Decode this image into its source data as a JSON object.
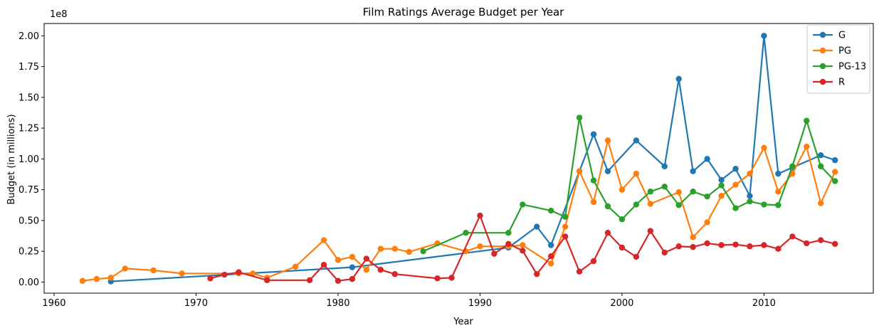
{
  "chart_data": {
    "type": "line",
    "title": "Film Ratings Average Budget per Year",
    "xlabel": "Year",
    "ylabel": "Budget (in millions)",
    "y_offset_text": "1e8",
    "xlim": [
      1959.3,
      2017.7
    ],
    "ylim": [
      -9000000,
      210000000
    ],
    "x_ticks": [
      1960,
      1970,
      1980,
      1990,
      2000,
      2010
    ],
    "y_ticks": [
      0,
      25000000,
      50000000,
      75000000,
      100000000,
      125000000,
      150000000,
      175000000,
      200000000
    ],
    "y_tick_labels": [
      "0.00",
      "0.25",
      "0.50",
      "0.75",
      "1.00",
      "1.25",
      "1.50",
      "1.75",
      "2.00"
    ],
    "grid": false,
    "legend_position": "top-right",
    "series": [
      {
        "name": "G",
        "color": "#1f77b4",
        "x": [
          1964,
          1981,
          1992,
          1994,
          1995,
          1997,
          1998,
          1999,
          2001,
          2003,
          2004,
          2005,
          2006,
          2007,
          2008,
          2009,
          2010,
          2011,
          2012,
          2014,
          2015
        ],
        "y": [
          500000,
          12000000,
          28000000,
          45000000,
          30000000,
          90000000,
          120000000,
          90000000,
          115000000,
          94000000,
          165000000,
          90000000,
          100000000,
          83000000,
          92000000,
          70000000,
          200000000,
          88000000,
          93000000,
          103000000,
          99000000
        ]
      },
      {
        "name": "PG",
        "color": "#ff7f0e",
        "x": [
          1962,
          1963,
          1964,
          1965,
          1967,
          1969,
          1973,
          1974,
          1975,
          1977,
          1979,
          1980,
          1981,
          1982,
          1983,
          1984,
          1985,
          1987,
          1989,
          1990,
          1992,
          1993,
          1995,
          1996,
          1997,
          1998,
          1999,
          2000,
          2001,
          2002,
          2004,
          2005,
          2006,
          2007,
          2008,
          2009,
          2010,
          2011,
          2012,
          2013,
          2014,
          2015
        ],
        "y": [
          1000000,
          2500000,
          3500000,
          11000000,
          9500000,
          7000000,
          7000000,
          7000000,
          3500000,
          12500000,
          34000000,
          18000000,
          20500000,
          10000000,
          27000000,
          27000000,
          24500000,
          31500000,
          25000000,
          29000000,
          29000000,
          30000000,
          15000000,
          45000000,
          90000000,
          65000000,
          115000000,
          75000000,
          88000000,
          63500000,
          73000000,
          36500000,
          48500000,
          70000000,
          79000000,
          88000000,
          109000000,
          73500000,
          88000000,
          110000000,
          64000000,
          89500000
        ]
      },
      {
        "name": "PG-13",
        "color": "#2ca02c",
        "x": [
          1986,
          1989,
          1992,
          1993,
          1995,
          1996,
          1997,
          1998,
          1999,
          2000,
          2001,
          2002,
          2003,
          2004,
          2005,
          2006,
          2007,
          2008,
          2009,
          2010,
          2011,
          2012,
          2013,
          2014,
          2015
        ],
        "y": [
          25000000,
          40000000,
          40000000,
          63000000,
          58000000,
          53000000,
          133500000,
          82500000,
          61500000,
          51000000,
          63000000,
          73500000,
          77500000,
          62500000,
          73500000,
          69500000,
          78500000,
          60000000,
          65500000,
          63000000,
          62500000,
          94000000,
          131000000,
          94000000,
          82000000
        ]
      },
      {
        "name": "R",
        "color": "#d62728",
        "x": [
          1971,
          1972,
          1973,
          1975,
          1978,
          1979,
          1980,
          1981,
          1982,
          1983,
          1984,
          1987,
          1988,
          1990,
          1991,
          1992,
          1993,
          1994,
          1995,
          1996,
          1997,
          1998,
          1999,
          2000,
          2001,
          2002,
          2003,
          2004,
          2005,
          2006,
          2007,
          2008,
          2009,
          2010,
          2011,
          2012,
          2013,
          2014,
          2015
        ],
        "y": [
          3000000,
          6000000,
          8000000,
          1500000,
          1500000,
          14000000,
          1000000,
          2500000,
          19000000,
          10000000,
          6500000,
          3000000,
          3500000,
          54000000,
          23000000,
          31000000,
          25500000,
          6500000,
          21000000,
          37000000,
          8500000,
          17000000,
          40000000,
          28000000,
          20500000,
          41500000,
          24000000,
          29000000,
          28500000,
          31500000,
          30000000,
          30500000,
          29000000,
          30000000,
          27000000,
          37000000,
          31500000,
          34000000,
          31000000
        ]
      }
    ]
  }
}
